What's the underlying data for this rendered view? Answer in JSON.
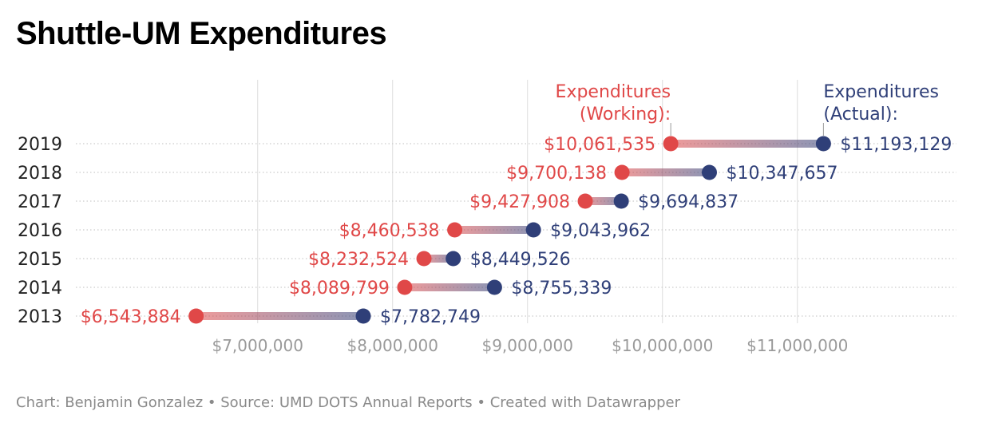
{
  "title": "Shuttle-UM Expenditures",
  "footer": {
    "chart_credit": "Chart: Benjamin Gonzalez",
    "source": "Source: UMD DOTS Annual Reports",
    "created": "Created with Datawrapper",
    "separator": " • "
  },
  "colors": {
    "working": "#e04848",
    "actual": "#2f3f78",
    "axis_text": "#9a9a9a",
    "gridline": "#dddddd",
    "row_line": "#cccccc"
  },
  "chart_data": {
    "type": "dot-range",
    "title": "Shuttle-UM Expenditures",
    "categories": [
      "2019",
      "2018",
      "2017",
      "2016",
      "2015",
      "2014",
      "2013"
    ],
    "series": [
      {
        "name": "Expenditures (Working):",
        "label_lines": [
          "Expenditures",
          "(Working):"
        ],
        "values": [
          10061535,
          9700138,
          9427908,
          8460538,
          8232524,
          8089799,
          6543884
        ],
        "labels": [
          "$10,061,535",
          "$9,700,138",
          "$9,427,908",
          "$8,460,538",
          "$8,232,524",
          "$8,089,799",
          "$6,543,884"
        ]
      },
      {
        "name": "Expenditures (Actual):",
        "label_lines": [
          "Expenditures",
          "(Actual):"
        ],
        "values": [
          11193129,
          10347657,
          9694837,
          9043962,
          8449526,
          8755339,
          7782749
        ],
        "labels": [
          "$11,193,129",
          "$10,347,657",
          "$9,694,837",
          "$9,043,962",
          "$8,449,526",
          "$8,755,339",
          "$7,782,749"
        ]
      }
    ],
    "x_ticks": [
      7000000,
      8000000,
      9000000,
      10000000,
      11000000
    ],
    "x_tick_labels": [
      "$7,000,000",
      "$8,000,000",
      "$9,000,000",
      "$10,000,000",
      "$11,000,000"
    ],
    "xlim": [
      6540000,
      11540000
    ],
    "grid": true
  }
}
